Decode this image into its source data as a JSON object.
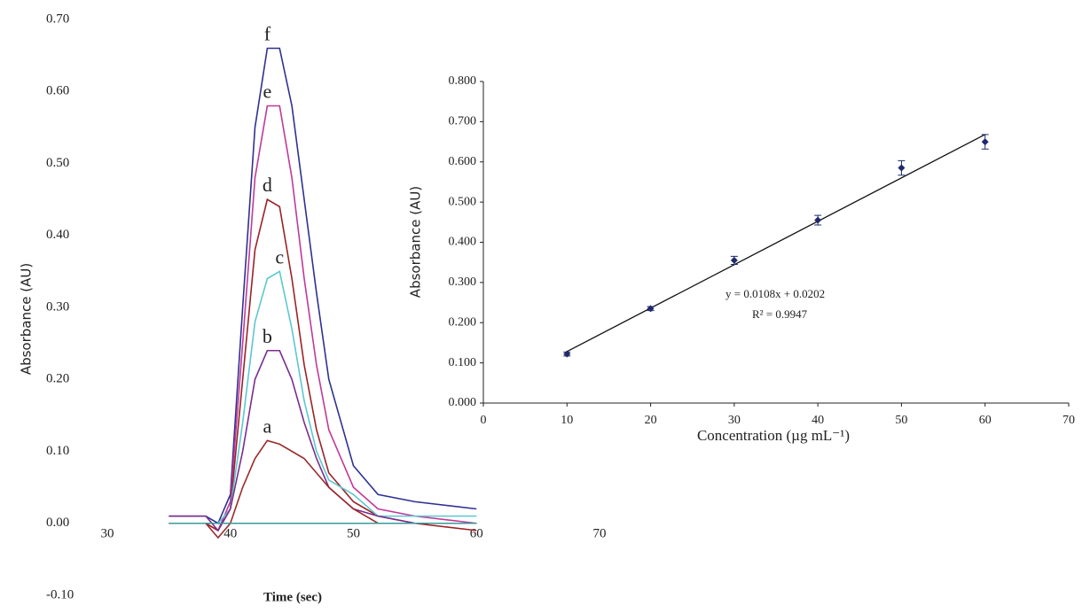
{
  "chart_data": [
    {
      "type": "line",
      "y_label": "Absorbance (AU)",
      "x_label": "Time (sec)",
      "x": [
        35,
        38,
        39,
        40,
        41,
        42,
        43,
        44,
        45,
        46,
        47,
        48,
        50,
        52,
        55,
        60
      ],
      "series": [
        {
          "name": "f",
          "color": "#2e3192",
          "values": [
            0.01,
            0.01,
            0.0,
            0.04,
            0.3,
            0.55,
            0.66,
            0.66,
            0.58,
            0.45,
            0.32,
            0.2,
            0.08,
            0.04,
            0.03,
            0.02
          ]
        },
        {
          "name": "e",
          "color": "#c0399a",
          "values": [
            0.0,
            0.0,
            -0.01,
            0.03,
            0.25,
            0.48,
            0.58,
            0.58,
            0.48,
            0.34,
            0.22,
            0.13,
            0.05,
            0.02,
            0.01,
            0.0
          ]
        },
        {
          "name": "d",
          "color": "#9b2226",
          "values": [
            0.0,
            0.0,
            -0.01,
            0.02,
            0.2,
            0.38,
            0.45,
            0.44,
            0.34,
            0.22,
            0.13,
            0.07,
            0.03,
            0.01,
            0.0,
            -0.01
          ]
        },
        {
          "name": "c",
          "color": "#5bc8d0",
          "values": [
            0.0,
            0.0,
            0.0,
            0.02,
            0.14,
            0.28,
            0.34,
            0.35,
            0.27,
            0.17,
            0.1,
            0.06,
            0.04,
            0.01,
            0.01,
            0.01
          ]
        },
        {
          "name": "b",
          "color": "#7b2d8e",
          "values": [
            0.01,
            0.01,
            -0.01,
            0.02,
            0.1,
            0.2,
            0.24,
            0.24,
            0.2,
            0.14,
            0.09,
            0.05,
            0.02,
            0.01,
            0.0,
            0.0
          ]
        },
        {
          "name": "a",
          "color": "#9b2a2a",
          "values": [
            0.0,
            0.0,
            -0.02,
            0.0,
            0.05,
            0.09,
            0.115,
            0.11,
            0.1,
            0.09,
            0.07,
            0.05,
            0.02,
            0.0,
            0.0,
            0.0
          ]
        },
        {
          "color": "#3a9a9a",
          "values": [
            0.0,
            0.0,
            0.0,
            0.0,
            0.0,
            0.0,
            0.0,
            0.0,
            0.0,
            0.0,
            0.0,
            0.0,
            0.0,
            0.0,
            0.0,
            0.0
          ]
        }
      ],
      "xlim": [
        30,
        70
      ],
      "xticks": [
        30,
        40,
        50,
        60,
        70
      ],
      "ylim": [
        -0.1,
        0.7
      ],
      "yticks": [
        {
          "value": -0.1,
          "label": "-0.10"
        },
        {
          "value": 0,
          "label": "0.00"
        },
        {
          "value": 0.1,
          "label": "0.10"
        },
        {
          "value": 0.2,
          "label": "0.20"
        },
        {
          "value": 0.3,
          "label": "0.30"
        },
        {
          "value": 0.4,
          "label": "0.40"
        },
        {
          "value": 0.5,
          "label": "0.50"
        },
        {
          "value": 0.6,
          "label": "0.60"
        },
        {
          "value": 0.7,
          "label": "0.70"
        }
      ]
    },
    {
      "type": "scatter",
      "y_label": "Absorbance (AU)",
      "x_label": "Concentration (µg mL⁻¹)",
      "x": [
        10,
        20,
        30,
        40,
        50,
        60
      ],
      "values": [
        0.122,
        0.235,
        0.355,
        0.455,
        0.585,
        0.65
      ],
      "errors": [
        0.005,
        0.005,
        0.01,
        0.012,
        0.018,
        0.018
      ],
      "color": "#1f2a6b",
      "fit": {
        "slope": 0.0108,
        "intercept": 0.0202,
        "label": "y = 0.0108x + 0.0202",
        "r2_label": "R² = 0.9947"
      },
      "xlim": [
        0,
        70
      ],
      "xticks": [
        0,
        10,
        20,
        30,
        40,
        50,
        60,
        70
      ],
      "ylim": [
        0,
        0.8
      ],
      "yticks": [
        {
          "value": 0,
          "label": "0.000"
        },
        {
          "value": 0.1,
          "label": "0.100"
        },
        {
          "value": 0.2,
          "label": "0.200"
        },
        {
          "value": 0.3,
          "label": "0.300"
        },
        {
          "value": 0.4,
          "label": "0.400"
        },
        {
          "value": 0.5,
          "label": "0.500"
        },
        {
          "value": 0.6,
          "label": "0.600"
        },
        {
          "value": 0.7,
          "label": "0.700"
        },
        {
          "value": 0.8,
          "label": "0.800"
        }
      ]
    }
  ]
}
